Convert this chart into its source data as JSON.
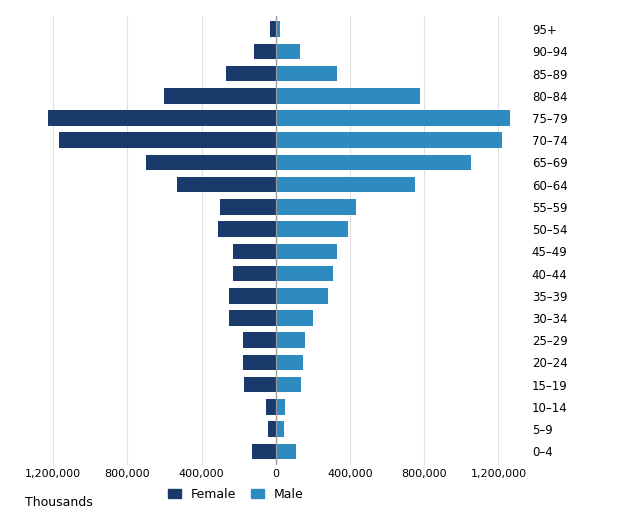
{
  "age_groups": [
    "0–4",
    "5–9",
    "10–14",
    "15–19",
    "20–24",
    "25–29",
    "30–34",
    "35–39",
    "40–44",
    "45–49",
    "50–54",
    "55–59",
    "60–64",
    "65–69",
    "70–74",
    "75–79",
    "80–84",
    "85–89",
    "90–94",
    "95+"
  ],
  "female_values": [
    -130000,
    -40000,
    -55000,
    -170000,
    -175000,
    -175000,
    -250000,
    -250000,
    -230000,
    -230000,
    -310000,
    -300000,
    -530000,
    -700000,
    -1170000,
    -1230000,
    -600000,
    -270000,
    -120000,
    -30000
  ],
  "male_values": [
    110000,
    45000,
    50000,
    135000,
    145000,
    155000,
    200000,
    280000,
    310000,
    330000,
    390000,
    430000,
    750000,
    1050000,
    1220000,
    1260000,
    780000,
    330000,
    130000,
    25000
  ],
  "female_color": "#1a3a6b",
  "male_color": "#2e8bc0",
  "xlim": [
    -1350000,
    1350000
  ],
  "xticks": [
    -1200000,
    -800000,
    -400000,
    0,
    400000,
    800000,
    1200000
  ],
  "xtick_labels": [
    "1,200,000",
    "800,000",
    "400,000",
    "0",
    "400,000",
    "800,000",
    "1,200,000"
  ],
  "thousands_label": "Thousands",
  "legend_female": "Female",
  "legend_male": "Male",
  "bar_height": 0.7,
  "figsize": [
    6.34,
    5.28
  ],
  "dpi": 100,
  "grid_color": "#e0e0e0",
  "background_color": "#ffffff",
  "zero_line_color": "#999999"
}
